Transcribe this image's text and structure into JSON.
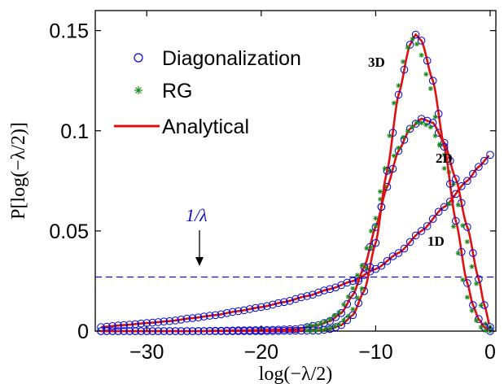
{
  "chart_data": {
    "type": "line",
    "xlabel": "log(−λ/2)",
    "ylabel": "P[log(−λ/2)]",
    "xlim": [
      -34.5,
      0.5
    ],
    "ylim": [
      0,
      0.16
    ],
    "xticks": [
      -30,
      -20,
      -10,
      0
    ],
    "xtick_labels": [
      "−30",
      "−20",
      "−10",
      "0"
    ],
    "yticks": [
      0,
      0.05,
      0.1,
      0.15
    ],
    "ytick_labels": [
      "0",
      "0.05",
      "0.1",
      "0.15"
    ],
    "grid": false,
    "legend_position": "top-left",
    "legend": [
      {
        "label": "Diagonalization",
        "marker": "circle",
        "color": "#0000cc"
      },
      {
        "label": "RG",
        "marker": "asterisk",
        "color": "#1a8a1a"
      },
      {
        "label": "Analytical",
        "marker": "line",
        "color": "#e01010"
      }
    ],
    "reference_line": {
      "y": 0.027,
      "style": "dashed",
      "color": "#1010c0"
    },
    "annotations": {
      "inverse_lambda": {
        "text": "1/λ",
        "x": -25.5,
        "arrow_to_y": 0.029
      },
      "d1": {
        "text": "1D"
      },
      "d2": {
        "text": "2D"
      },
      "d3": {
        "text": "3D"
      }
    },
    "series": [
      {
        "dimension": "1D",
        "shape": "rising",
        "x": [
          -34,
          -32,
          -30,
          -28,
          -26,
          -24,
          -22,
          -20,
          -18,
          -16,
          -14,
          -12,
          -10,
          -8,
          -6,
          -4,
          -2,
          -1,
          0
        ],
        "values": [
          0.002,
          0.003,
          0.004,
          0.005,
          0.0065,
          0.008,
          0.01,
          0.012,
          0.0145,
          0.0175,
          0.021,
          0.025,
          0.031,
          0.039,
          0.05,
          0.062,
          0.075,
          0.082,
          0.088
        ]
      },
      {
        "dimension": "2D",
        "shape": "peaked",
        "x": [
          -34,
          -26,
          -20,
          -17,
          -15,
          -14,
          -13,
          -12,
          -11,
          -10,
          -9,
          -8,
          -7,
          -6,
          -5,
          -4,
          -3,
          -2,
          -1,
          -0.5,
          0
        ],
        "values": [
          0,
          0,
          0.0005,
          0.001,
          0.003,
          0.005,
          0.009,
          0.018,
          0.032,
          0.052,
          0.072,
          0.09,
          0.101,
          0.106,
          0.104,
          0.094,
          0.076,
          0.052,
          0.026,
          0.013,
          0.002
        ]
      },
      {
        "dimension": "3D",
        "shape": "peaked",
        "x": [
          -34,
          -20,
          -15,
          -14,
          -13,
          -12,
          -11,
          -10,
          -9,
          -8,
          -7,
          -6.5,
          -6,
          -5,
          -4,
          -3,
          -2,
          -1.5,
          -1,
          -0.5,
          0
        ],
        "values": [
          0,
          0,
          0.0003,
          0.001,
          0.003,
          0.008,
          0.02,
          0.044,
          0.08,
          0.118,
          0.143,
          0.148,
          0.145,
          0.125,
          0.092,
          0.055,
          0.024,
          0.013,
          0.006,
          0.002,
          0
        ]
      }
    ]
  }
}
